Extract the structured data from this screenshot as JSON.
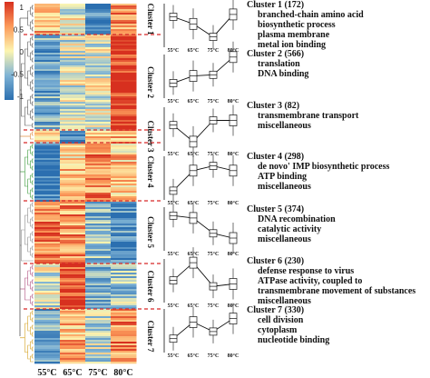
{
  "colorbar": {
    "ticks": [
      "1",
      "0.5",
      "0",
      "-0.5",
      "-1"
    ]
  },
  "heatmap": {
    "columns": [
      "55°C",
      "65°C",
      "75°C",
      "80°C"
    ]
  },
  "clusters": [
    {
      "id": 1,
      "label": "Cluster 1",
      "title": "Cluster 1 (172)",
      "terms": [
        "branched-chain amino acid",
        "biosynthetic process",
        "plasma membrane",
        "metal ion binding"
      ],
      "trend": [
        0.5,
        -0.1,
        -1.2,
        0.7
      ]
    },
    {
      "id": 2,
      "label": "Cluster 2",
      "title": "Cluster 2 (566)",
      "terms": [
        "translation",
        "DNA binding"
      ],
      "trend": [
        -0.8,
        -0.2,
        -0.1,
        1.4
      ]
    },
    {
      "id": 3,
      "label": "Cluster 3",
      "title": "Cluster 3 (82)",
      "terms": [
        "transmembrane transport",
        "miscellaneous"
      ],
      "trend": [
        0.1,
        -1.3,
        0.5,
        0.5
      ]
    },
    {
      "id": 4,
      "label": "Cluster 4",
      "title": "Cluster 4 (298)",
      "terms": [
        "de novo' IMP biosynthetic process",
        "ATP binding",
        "miscellaneous"
      ],
      "trend": [
        -1.3,
        0.4,
        0.8,
        0.4
      ]
    },
    {
      "id": 5,
      "label": "Cluster 5",
      "title": "Cluster 5 (374)",
      "terms": [
        "DNA recombination",
        "catalytic activity",
        "miscellaneous"
      ],
      "trend": [
        0.9,
        0.7,
        -0.6,
        -1.0
      ]
    },
    {
      "id": 6,
      "label": "Cluster 6",
      "title": "Cluster 6 (230)",
      "terms": [
        "defense response to virus",
        "ATPase activity, coupled to",
        "transmembrane movement of substances",
        "miscellaneous"
      ],
      "trend": [
        -0.2,
        1.3,
        -0.7,
        -0.5
      ]
    },
    {
      "id": 7,
      "label": "Cluster 7",
      "title": "Cluster 7 (330)",
      "terms": [
        "cell division",
        "cytoplasm",
        "nucleotide binding"
      ],
      "trend": [
        -0.9,
        0.5,
        -0.3,
        0.8
      ]
    }
  ],
  "palette": {
    "high": "#d7301f",
    "mid": "#fdf5b0",
    "low": "#2b6fb0",
    "divider": "#d62728"
  }
}
